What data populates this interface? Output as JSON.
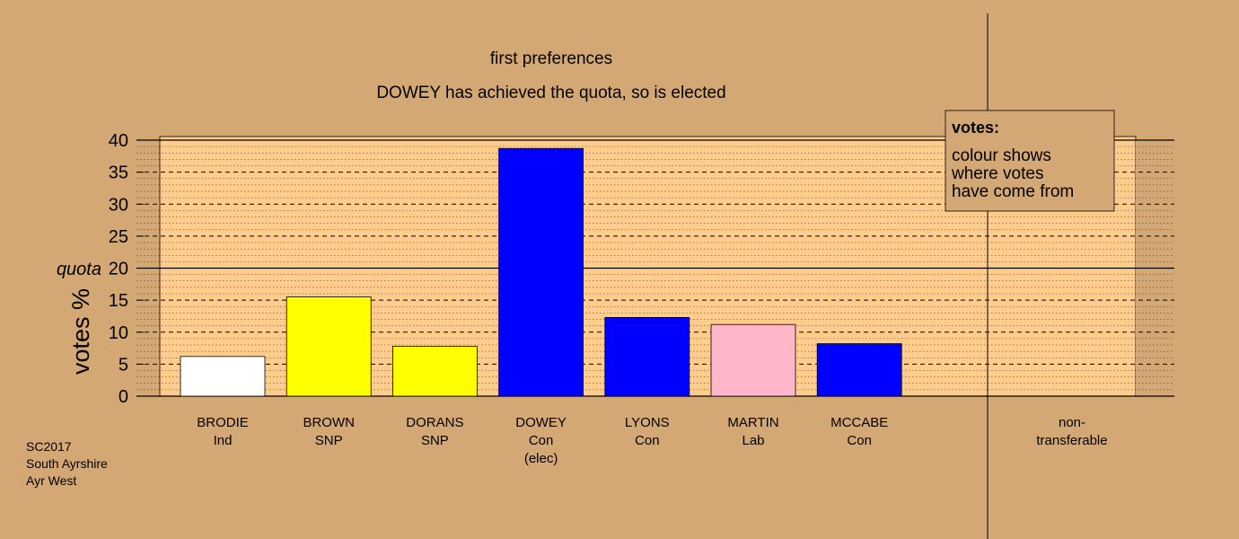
{
  "chart_data": {
    "type": "bar",
    "title": "first preferences",
    "subtitle": "DOWEY has achieved the quota, so is elected",
    "ylabel": "votes %",
    "quota_label": "quota",
    "quota_value": 20,
    "ylim": [
      0,
      40
    ],
    "yticks": [
      0,
      5,
      10,
      15,
      20,
      25,
      30,
      35,
      40
    ],
    "grid": true,
    "categories": [
      {
        "name": "BRODIE",
        "party": "Ind",
        "note": "",
        "value": 6.2,
        "color": "#FFFFFF"
      },
      {
        "name": "BROWN",
        "party": "SNP",
        "note": "",
        "value": 15.5,
        "color": "#FFFF00"
      },
      {
        "name": "DORANS",
        "party": "SNP",
        "note": "",
        "value": 7.8,
        "color": "#FFFF00"
      },
      {
        "name": "DOWEY",
        "party": "Con",
        "note": "(elec)",
        "value": 38.7,
        "color": "#0000FF"
      },
      {
        "name": "LYONS",
        "party": "Con",
        "note": "",
        "value": 12.3,
        "color": "#0000FF"
      },
      {
        "name": "MARTIN",
        "party": "Lab",
        "note": "",
        "value": 11.2,
        "color": "#FFB6C8"
      },
      {
        "name": "MCCABE",
        "party": "Con",
        "note": "",
        "value": 8.2,
        "color": "#0000FF"
      }
    ],
    "nontransferable": {
      "line1": "non-",
      "line2": "transferable",
      "value": 0
    },
    "legend": {
      "title": "votes:",
      "lines": [
        "colour shows",
        "where votes",
        "have come from"
      ],
      "placement": "top-right"
    },
    "source": [
      "SC2017",
      "South Ayrshire",
      "Ayr West"
    ]
  },
  "colors": {
    "background": "#D4A875",
    "plot_area": "#FFCC8C",
    "nontransferable_area": "#D4A875"
  }
}
